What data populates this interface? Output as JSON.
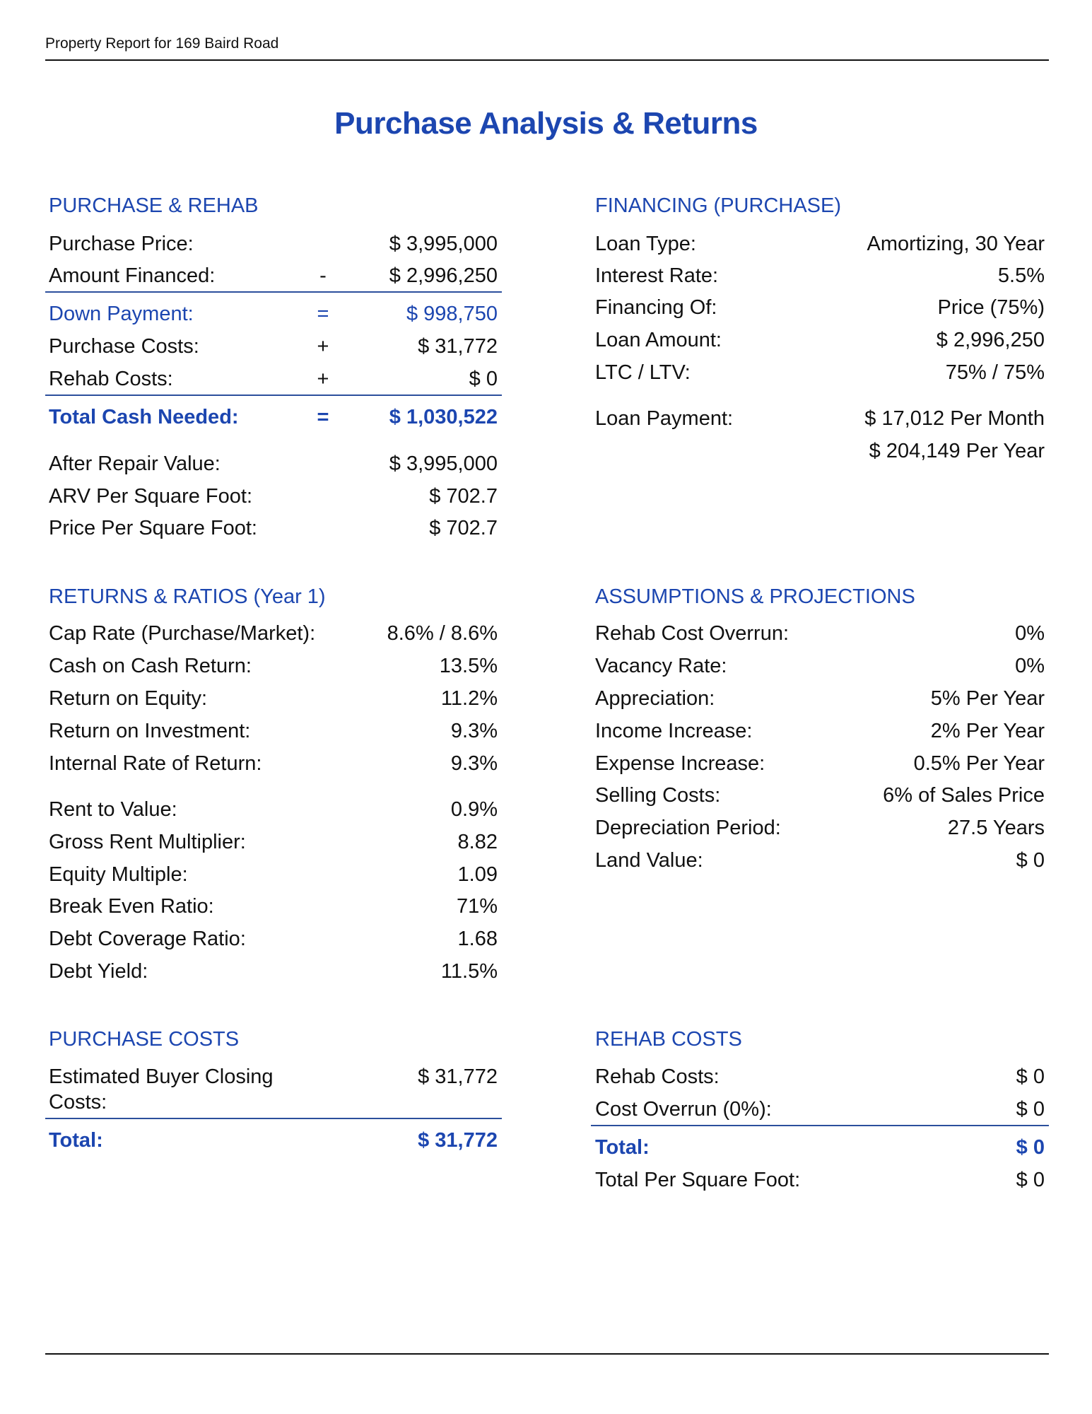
{
  "header": {
    "text": "Property Report for 169 Baird Road"
  },
  "title": "Purchase Analysis & Returns",
  "colors": {
    "accent": "#1c46b0",
    "text": "#111111"
  },
  "purchase_rehab": {
    "heading": "PURCHASE & REHAB",
    "rows": [
      {
        "label": "Purchase Price:",
        "op": "",
        "value": "$ 3,995,000"
      },
      {
        "label": "Amount Financed:",
        "op": "-",
        "value": "$ 2,996,250"
      },
      {
        "label": "Down Payment:",
        "op": "=",
        "value": "$ 998,750"
      },
      {
        "label": "Purchase Costs:",
        "op": "+",
        "value": "$ 31,772"
      },
      {
        "label": "Rehab Costs:",
        "op": "+",
        "value": "$ 0"
      },
      {
        "label": "Total Cash Needed:",
        "op": "=",
        "value": "$ 1,030,522"
      },
      {
        "label": "After Repair Value:",
        "op": "",
        "value": "$ 3,995,000"
      },
      {
        "label": "ARV Per Square Foot:",
        "op": "",
        "value": "$ 702.7"
      },
      {
        "label": "Price Per Square Foot:",
        "op": "",
        "value": "$ 702.7"
      }
    ]
  },
  "financing": {
    "heading": "FINANCING (PURCHASE)",
    "rows": [
      {
        "label": "Loan Type:",
        "value": "Amortizing, 30 Year"
      },
      {
        "label": "Interest Rate:",
        "value": "5.5%"
      },
      {
        "label": "Financing Of:",
        "value": "Price (75%)"
      },
      {
        "label": "Loan Amount:",
        "value": "$ 2,996,250"
      },
      {
        "label": "LTC / LTV:",
        "value": "75% / 75%"
      },
      {
        "label": "Loan Payment:",
        "value": "$ 17,012 Per Month"
      },
      {
        "label": "",
        "value": "$ 204,149 Per Year"
      }
    ]
  },
  "returns": {
    "heading": "RETURNS & RATIOS  (Year 1)",
    "rows": [
      {
        "label": "Cap Rate (Purchase/Market):",
        "value": "8.6% / 8.6%"
      },
      {
        "label": "Cash on Cash Return:",
        "value": "13.5%"
      },
      {
        "label": "Return on Equity:",
        "value": "11.2%"
      },
      {
        "label": "Return on Investment:",
        "value": "9.3%"
      },
      {
        "label": "Internal Rate of Return:",
        "value": "9.3%"
      },
      {
        "label": "Rent to Value:",
        "value": "0.9%"
      },
      {
        "label": "Gross Rent Multiplier:",
        "value": "8.82"
      },
      {
        "label": "Equity Multiple:",
        "value": "1.09"
      },
      {
        "label": "Break Even Ratio:",
        "value": "71%"
      },
      {
        "label": "Debt Coverage Ratio:",
        "value": "1.68"
      },
      {
        "label": "Debt Yield:",
        "value": "11.5%"
      }
    ]
  },
  "assumptions": {
    "heading": "ASSUMPTIONS & PROJECTIONS",
    "rows": [
      {
        "label": "Rehab Cost Overrun:",
        "value": "0%"
      },
      {
        "label": "Vacancy Rate:",
        "value": "0%"
      },
      {
        "label": "Appreciation:",
        "value": "5% Per Year"
      },
      {
        "label": "Income Increase:",
        "value": "2% Per Year"
      },
      {
        "label": "Expense Increase:",
        "value": "0.5% Per Year"
      },
      {
        "label": "Selling Costs:",
        "value": "6% of Sales Price"
      },
      {
        "label": "Depreciation Period:",
        "value": "27.5 Years"
      },
      {
        "label": "Land Value:",
        "value": "$ 0"
      }
    ]
  },
  "purchase_costs": {
    "heading": "PURCHASE COSTS",
    "rows": [
      {
        "label": "Estimated Buyer Closing",
        "value": "$ 31,772"
      },
      {
        "label": "Costs:",
        "value": ""
      },
      {
        "label": "Total:",
        "value": "$ 31,772"
      }
    ]
  },
  "rehab_costs": {
    "heading": "REHAB COSTS",
    "rows": [
      {
        "label": "Rehab Costs:",
        "value": "$ 0"
      },
      {
        "label": "Cost Overrun (0%):",
        "value": "$ 0"
      },
      {
        "label": "Total:",
        "value": "$ 0"
      },
      {
        "label": "Total Per Square Foot:",
        "value": "$ 0"
      }
    ]
  }
}
